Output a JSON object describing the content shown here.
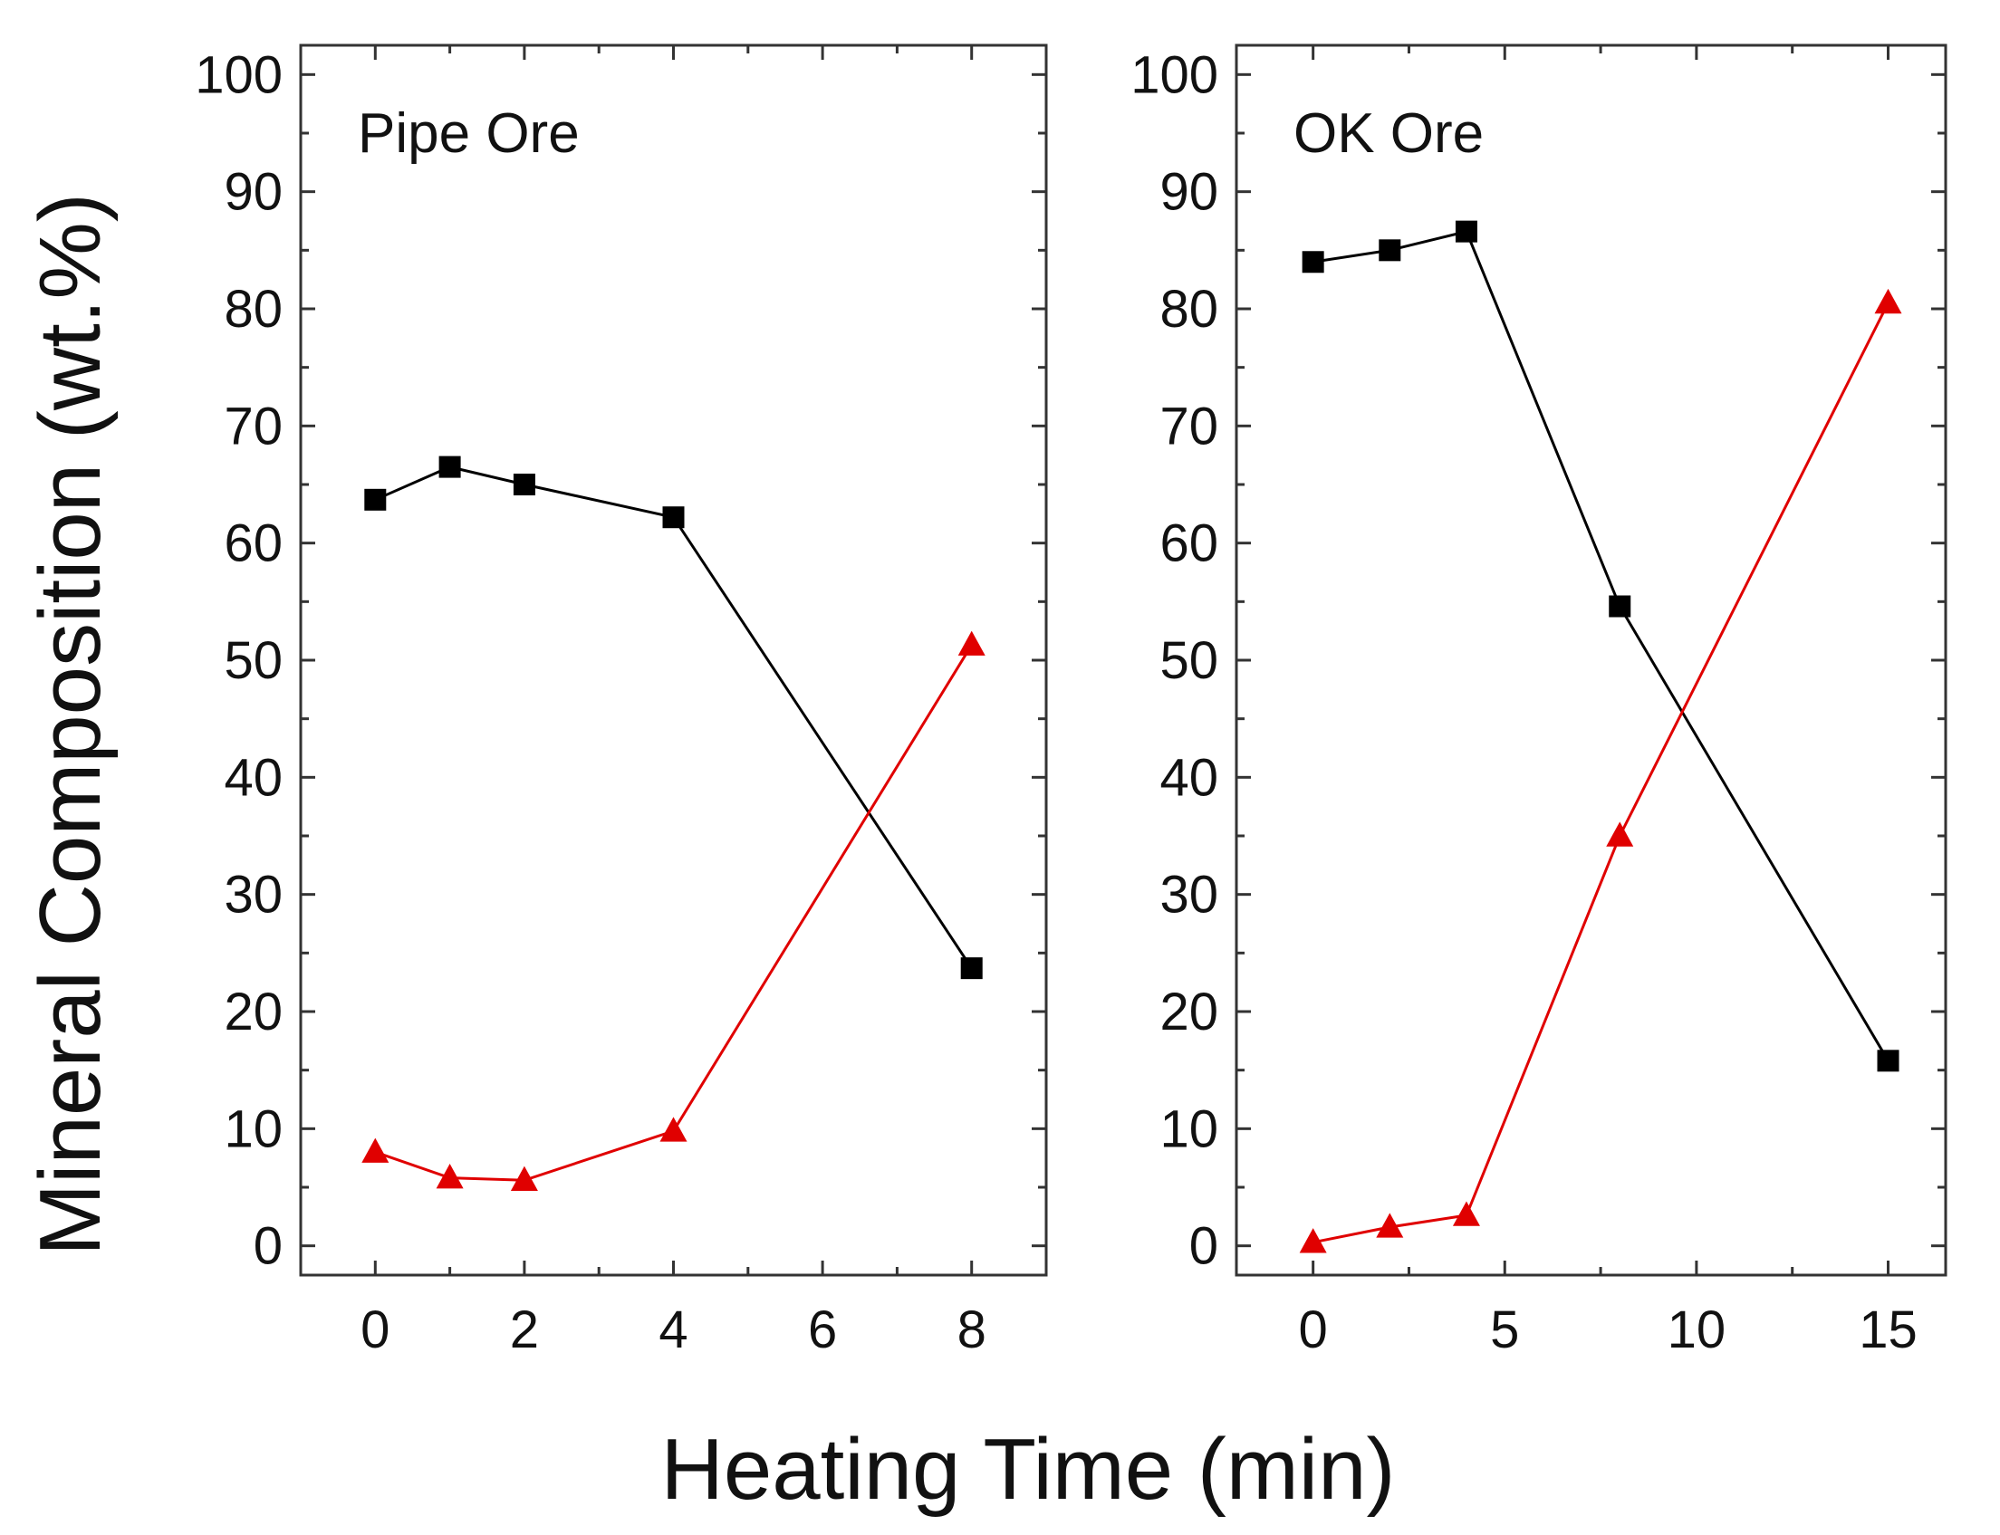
{
  "figure": {
    "ylabel": "Mineral Composition (wt.%)",
    "xlabel": "Heating Time (min)"
  },
  "chart_data": [
    {
      "type": "line",
      "title": "Pipe Ore",
      "xlabel": "Heating Time (min)",
      "ylabel": "Mineral Composition (wt.%)",
      "xlim": [
        -1,
        9
      ],
      "ylim": [
        -2.5,
        102.5
      ],
      "xticks": [
        0,
        2,
        4,
        6,
        8
      ],
      "yticks": [
        0,
        10,
        20,
        30,
        40,
        50,
        60,
        70,
        80,
        90,
        100
      ],
      "grid": false,
      "series": [
        {
          "marker": "square",
          "color": "#000000",
          "x": [
            0,
            1,
            2,
            4,
            8
          ],
          "y": [
            63.7,
            66.5,
            65.0,
            62.2,
            23.7
          ]
        },
        {
          "marker": "triangle",
          "color": "#e00000",
          "x": [
            0,
            1,
            2,
            4,
            8
          ],
          "y": [
            8.0,
            5.8,
            5.6,
            9.8,
            51.3
          ]
        }
      ]
    },
    {
      "type": "line",
      "title": "OK Ore",
      "xlabel": "Heating Time (min)",
      "ylabel": "Mineral Composition (wt.%)",
      "xlim": [
        -2,
        16.5
      ],
      "ylim": [
        -2.5,
        102.5
      ],
      "xticks": [
        0,
        5,
        10,
        15
      ],
      "yticks": [
        0,
        10,
        20,
        30,
        40,
        50,
        60,
        70,
        80,
        90,
        100
      ],
      "grid": false,
      "series": [
        {
          "marker": "square",
          "color": "#000000",
          "x": [
            0,
            2,
            4,
            8,
            15
          ],
          "y": [
            84.0,
            85.0,
            86.6,
            54.6,
            15.8
          ]
        },
        {
          "marker": "triangle",
          "color": "#e00000",
          "x": [
            0,
            2,
            4,
            8,
            15
          ],
          "y": [
            0.3,
            1.6,
            2.6,
            35.0,
            80.5
          ]
        }
      ]
    }
  ]
}
